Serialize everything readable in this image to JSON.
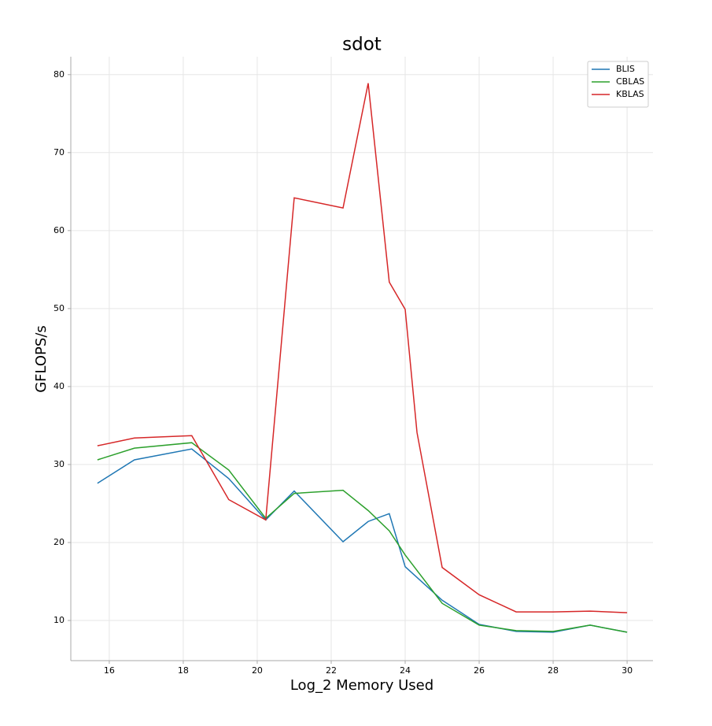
{
  "chart_data": {
    "type": "line",
    "title": "sdot",
    "xlabel": "Log_2 Memory Used",
    "ylabel": "GFLOPS/s",
    "series": [
      {
        "name": "BLIS",
        "color": "#1f77b4",
        "x": [
          15.68,
          16.68,
          18.23,
          19.23,
          20.23,
          21.0,
          22.32,
          23.0,
          23.57,
          24.0,
          25.0,
          26.0,
          27.0,
          28.0,
          29.0,
          30.0
        ],
        "values": [
          27.6,
          30.6,
          32.0,
          28.2,
          22.9,
          26.6,
          20.1,
          22.7,
          23.7,
          16.9,
          12.6,
          9.5,
          8.6,
          8.5,
          9.4,
          8.5
        ]
      },
      {
        "name": "CBLAS",
        "color": "#2ca02c",
        "x": [
          15.68,
          16.68,
          18.23,
          19.23,
          20.23,
          21.0,
          22.32,
          23.0,
          23.57,
          24.0,
          25.0,
          26.0,
          27.0,
          28.0,
          29.0,
          30.0
        ],
        "values": [
          30.6,
          32.1,
          32.8,
          29.3,
          23.1,
          26.3,
          26.7,
          24.1,
          21.5,
          18.4,
          12.2,
          9.4,
          8.7,
          8.6,
          9.4,
          8.5
        ]
      },
      {
        "name": "KBLAS",
        "color": "#d62728",
        "x": [
          15.68,
          16.68,
          18.23,
          19.23,
          20.23,
          21.0,
          22.32,
          23.0,
          23.57,
          24.0,
          24.32,
          25.0,
          26.0,
          27.0,
          28.0,
          29.0,
          30.0
        ],
        "values": [
          32.4,
          33.4,
          33.7,
          25.5,
          22.9,
          64.2,
          62.9,
          78.9,
          53.4,
          49.9,
          34.1,
          16.8,
          13.3,
          11.1,
          11.1,
          11.2,
          11.0
        ]
      }
    ],
    "xlim": [
      14.96,
      30.7
    ],
    "ylim": [
      4.85,
      82.3
    ],
    "xticks": [
      16,
      18,
      20,
      22,
      24,
      26,
      28,
      30
    ],
    "yticks": [
      10,
      20,
      30,
      40,
      50,
      60,
      70,
      80
    ],
    "grid": true,
    "legend": "upper-right"
  }
}
